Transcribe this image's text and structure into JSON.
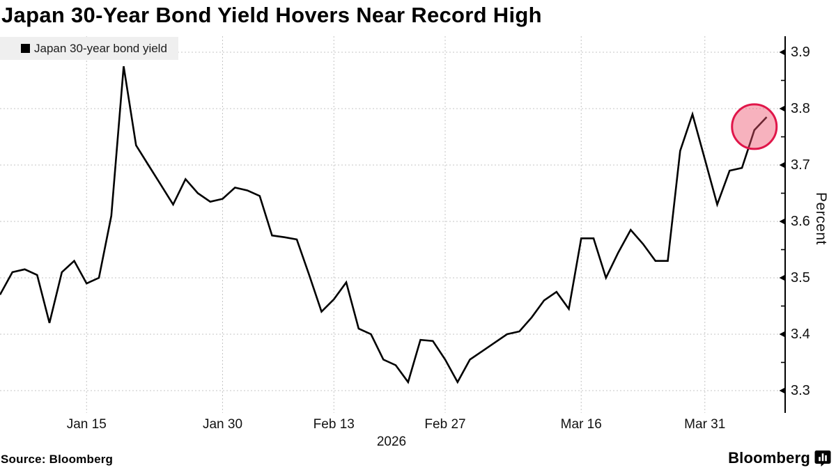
{
  "title": "Japan 30-Year Bond Yield Hovers Near Record High",
  "legend": {
    "label": "Japan 30-year bond yield",
    "position": "top-left",
    "swatch": "black-square"
  },
  "source": "Source: Bloomberg",
  "branding": {
    "wordmark": "Bloomberg",
    "icon": "bloomberg-bar-chart-bubble-icon"
  },
  "axis": {
    "y_title": "Percent",
    "year_label": "2026"
  },
  "colors": {
    "line": "#000000",
    "grid": "#c4c4c4",
    "axis": "#000000",
    "tick_label": "#111111",
    "legend_bg": "#efefef",
    "highlight_stroke": "#e0164a",
    "highlight_fill_rgba": "rgba(237,84,110,0.45)"
  },
  "chart_data": {
    "type": "line",
    "title": "Japan 30-Year Bond Yield Hovers Near Record High",
    "ylabel": "Percent",
    "xlabel": "2026",
    "grid": true,
    "legend_position": "top-left",
    "y_ticks": [
      3.3,
      3.4,
      3.5,
      3.6,
      3.7,
      3.8,
      3.9
    ],
    "y_minor_tick_step": 0.05,
    "ylim": [
      3.26,
      3.93
    ],
    "x_tick_labels": [
      "Jan 15",
      "Jan 30",
      "Feb 13",
      "Feb 27",
      "Mar 16",
      "Mar 31"
    ],
    "x_tick_indices": [
      7,
      18,
      27,
      36,
      47,
      57
    ],
    "x_year_label": "2026",
    "series": [
      {
        "name": "Japan 30-year bond yield",
        "unit": "percent",
        "values": [
          3.47,
          3.51,
          3.515,
          3.505,
          3.42,
          3.51,
          3.53,
          3.49,
          3.5,
          3.61,
          3.875,
          3.735,
          3.7,
          3.665,
          3.63,
          3.675,
          3.65,
          3.635,
          3.64,
          3.66,
          3.655,
          3.645,
          3.575,
          3.572,
          3.568,
          3.505,
          3.44,
          3.462,
          3.492,
          3.41,
          3.4,
          3.355,
          3.345,
          3.315,
          3.39,
          3.388,
          3.355,
          3.315,
          3.355,
          3.37,
          3.385,
          3.4,
          3.405,
          3.43,
          3.46,
          3.475,
          3.445,
          3.57,
          3.57,
          3.5,
          3.545,
          3.585,
          3.56,
          3.53,
          3.53,
          3.725,
          3.79,
          3.71,
          3.63,
          3.69,
          3.695,
          3.762,
          3.785
        ]
      }
    ],
    "highlight": {
      "shape": "circle",
      "at_index": 61,
      "at_value": 3.768,
      "radius_px": 32,
      "note": "marks latest values near record high"
    }
  }
}
